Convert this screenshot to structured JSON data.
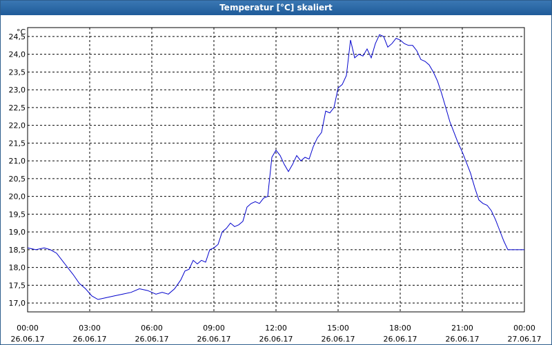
{
  "window": {
    "title": "Temperatur [°C] skaliert"
  },
  "chart_data": {
    "type": "line",
    "title": "Temperatur [°C] skaliert",
    "ylabel": "°C",
    "xlabel": "",
    "ylim": [
      16.75,
      24.75
    ],
    "yticks": [
      "17,0",
      "17,5",
      "18,0",
      "18,5",
      "19,0",
      "19,5",
      "20,0",
      "20,5",
      "21,0",
      "21,5",
      "22,0",
      "22,5",
      "23,0",
      "23,5",
      "24,0",
      "24,5"
    ],
    "yvalues": [
      17.0,
      17.5,
      18.0,
      18.5,
      19.0,
      19.5,
      20.0,
      20.5,
      21.0,
      21.5,
      22.0,
      22.5,
      23.0,
      23.5,
      24.0,
      24.5
    ],
    "xlim": [
      0,
      24
    ],
    "xticks": [
      {
        "time": "00:00",
        "date": "26.06.17",
        "h": 0
      },
      {
        "time": "03:00",
        "date": "26.06.17",
        "h": 3
      },
      {
        "time": "06:00",
        "date": "26.06.17",
        "h": 6
      },
      {
        "time": "09:00",
        "date": "26.06.17",
        "h": 9
      },
      {
        "time": "12:00",
        "date": "26.06.17",
        "h": 12
      },
      {
        "time": "15:00",
        "date": "26.06.17",
        "h": 15
      },
      {
        "time": "18:00",
        "date": "26.06.17",
        "h": 18
      },
      {
        "time": "21:00",
        "date": "26.06.17",
        "h": 21
      },
      {
        "time": "00:00",
        "date": "27.06.17",
        "h": 24
      }
    ],
    "grid": true,
    "line_color": "#0000cc",
    "series": [
      {
        "x": [
          0,
          0.4,
          0.8,
          1.1,
          1.4,
          1.8,
          2.2,
          2.5,
          2.8,
          3.1,
          3.4,
          3.8,
          4.2,
          4.6,
          5.0,
          5.4,
          5.8,
          6.0,
          6.2,
          6.5,
          6.8,
          7.1,
          7.4,
          7.6,
          7.8,
          8.0,
          8.2,
          8.4,
          8.6,
          8.8,
          9.0,
          9.2,
          9.4,
          9.6,
          9.8,
          10.0,
          10.2,
          10.4,
          10.6,
          10.8,
          11.0,
          11.2,
          11.4,
          11.6,
          11.8,
          12.0,
          12.2,
          12.4,
          12.6,
          12.8,
          13.0,
          13.2,
          13.4,
          13.6,
          13.8,
          14.0,
          14.2,
          14.4,
          14.6,
          14.8,
          15.0,
          15.2,
          15.4,
          15.6,
          15.8,
          16.0,
          16.2,
          16.4,
          16.6,
          16.8,
          17.0,
          17.2,
          17.4,
          17.6,
          17.8,
          18.0,
          18.2,
          18.4,
          18.6,
          18.8,
          19.0,
          19.2,
          19.4,
          19.6,
          19.8,
          20.0,
          20.2,
          20.4,
          20.6,
          20.8,
          21.0,
          21.2,
          21.4,
          21.6,
          21.8,
          22.0,
          22.2,
          22.4,
          22.6,
          22.8,
          23.0,
          23.2,
          23.4,
          23.6,
          23.8,
          24.0
        ],
        "y": [
          18.55,
          18.5,
          18.55,
          18.5,
          18.4,
          18.1,
          17.8,
          17.55,
          17.4,
          17.2,
          17.1,
          17.15,
          17.2,
          17.25,
          17.3,
          17.4,
          17.35,
          17.3,
          17.25,
          17.3,
          17.25,
          17.4,
          17.65,
          17.9,
          17.95,
          18.2,
          18.1,
          18.2,
          18.15,
          18.5,
          18.55,
          18.65,
          19.0,
          19.1,
          19.25,
          19.15,
          19.2,
          19.3,
          19.7,
          19.8,
          19.85,
          19.8,
          19.95,
          20.0,
          21.1,
          21.3,
          21.15,
          20.9,
          20.7,
          20.9,
          21.15,
          21.0,
          21.1,
          21.05,
          21.4,
          21.65,
          21.8,
          22.4,
          22.35,
          22.5,
          23.05,
          23.15,
          23.4,
          24.4,
          23.9,
          24.0,
          23.95,
          24.15,
          23.9,
          24.3,
          24.55,
          24.5,
          24.2,
          24.3,
          24.45,
          24.4,
          24.3,
          24.25,
          24.25,
          24.1,
          23.85,
          23.8,
          23.7,
          23.5,
          23.25,
          22.9,
          22.5,
          22.1,
          21.8,
          21.5,
          21.25,
          20.95,
          20.65,
          20.25,
          19.9,
          19.8,
          19.75,
          19.6,
          19.35,
          19.05,
          18.75,
          18.5,
          18.5,
          18.5,
          18.5,
          18.5
        ]
      }
    ]
  }
}
